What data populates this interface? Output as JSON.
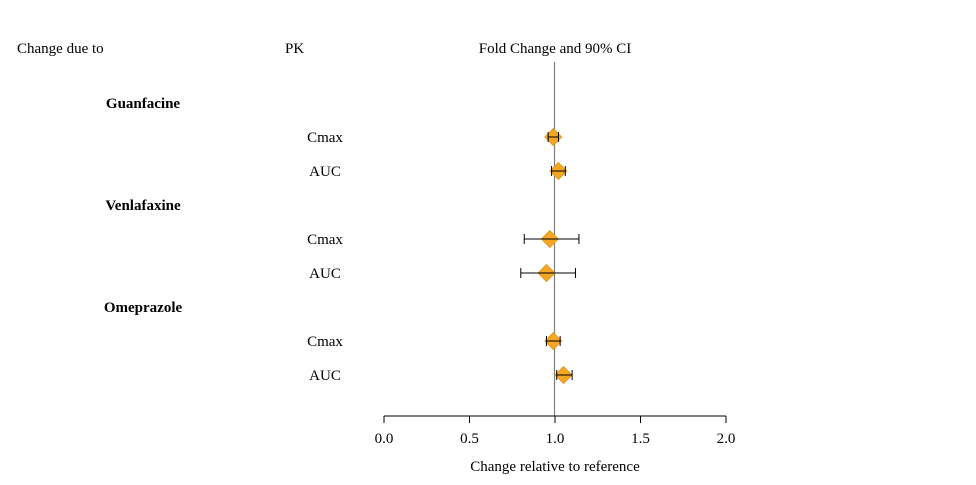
{
  "headers": {
    "change_due_to": "Change due to",
    "pk": "PK",
    "fold_change": "Fold Change and 90% CI"
  },
  "colors": {
    "marker": "#F5A623",
    "marker_stroke": "#E0941A",
    "reference_line": "#7F7F7F",
    "axis": "#000000"
  },
  "chart_data": {
    "type": "forest",
    "title": "Fold Change and 90% CI",
    "xlabel": "Change relative to reference",
    "xlim": [
      0.0,
      2.0
    ],
    "xticks": [
      0.0,
      0.5,
      1.0,
      1.5,
      2.0
    ],
    "xtick_labels": [
      "0.0",
      "0.5",
      "1.0",
      "1.5",
      "2.0"
    ],
    "reference_value": 1.0,
    "groups": [
      {
        "name": "Guanfacine",
        "rows": [
          {
            "pk": "Cmax",
            "estimate": 0.99,
            "lower": 0.96,
            "upper": 1.02
          },
          {
            "pk": "AUC",
            "estimate": 1.02,
            "lower": 0.98,
            "upper": 1.06
          }
        ]
      },
      {
        "name": "Venlafaxine",
        "rows": [
          {
            "pk": "Cmax",
            "estimate": 0.97,
            "lower": 0.82,
            "upper": 1.14
          },
          {
            "pk": "AUC",
            "estimate": 0.95,
            "lower": 0.8,
            "upper": 1.12
          }
        ]
      },
      {
        "name": "Omeprazole",
        "rows": [
          {
            "pk": "Cmax",
            "estimate": 0.99,
            "lower": 0.95,
            "upper": 1.03
          },
          {
            "pk": "AUC",
            "estimate": 1.05,
            "lower": 1.01,
            "upper": 1.1
          }
        ]
      }
    ]
  }
}
